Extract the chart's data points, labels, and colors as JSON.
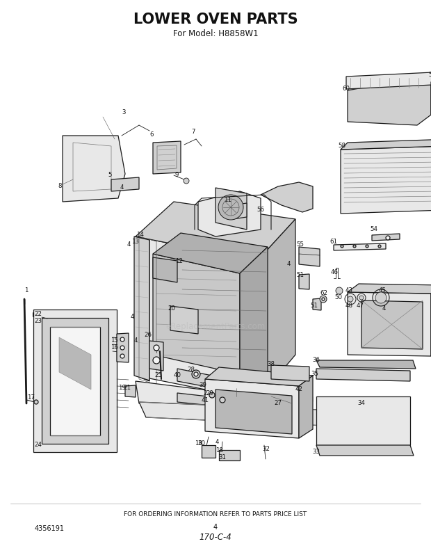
{
  "title": "LOWER OVEN PARTS",
  "subtitle": "For Model: H8858W1",
  "footer_text": "FOR ORDERING INFORMATION REFER TO PARTS PRICE LIST",
  "part_number": "4356191",
  "revision": "170-C-4",
  "fig_width": 6.2,
  "fig_height": 7.85,
  "dpi": 100,
  "watermark": "eReplacementParts.com",
  "bg_color": "#ffffff",
  "lc": "#1a1a1a",
  "lw_main": 0.9,
  "lw_inner": 0.55,
  "fc_light": "#e8e8e8",
  "fc_mid": "#d0d0d0",
  "fc_dark": "#b8b8b8",
  "fc_white": "#f5f5f5"
}
